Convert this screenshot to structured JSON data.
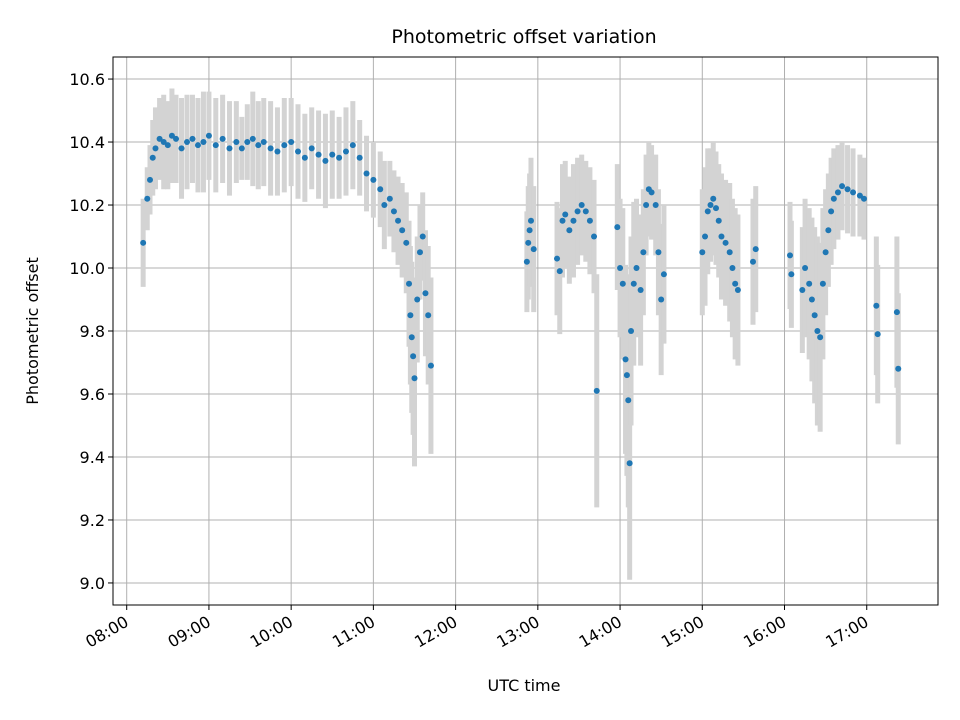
{
  "chart_data": {
    "type": "scatter",
    "title": "Photometric offset variation",
    "xlabel": "UTC time",
    "ylabel": "Photometric offset",
    "x_ticks": [
      "08:00",
      "09:00",
      "10:00",
      "11:00",
      "12:00",
      "13:00",
      "14:00",
      "15:00",
      "16:00",
      "17:00"
    ],
    "y_ticks": [
      "9.0",
      "9.2",
      "9.4",
      "9.6",
      "9.8",
      "10.0",
      "10.2",
      "10.4",
      "10.6"
    ],
    "xlim": [
      "07:50",
      "17:52"
    ],
    "ylim": [
      8.93,
      10.67
    ],
    "grid": true,
    "colors": {
      "points": "#1f77b4",
      "errorbars": "#d3d3d3",
      "grid": "#b0b0b0"
    },
    "series": [
      {
        "points": [
          [
            "08:12",
            10.08,
            0.14
          ],
          [
            "08:15",
            10.22,
            0.1
          ],
          [
            "08:17",
            10.28,
            0.11
          ],
          [
            "08:19",
            10.35,
            0.12
          ],
          [
            "08:21",
            10.38,
            0.13
          ],
          [
            "08:24",
            10.41,
            0.13
          ],
          [
            "08:27",
            10.4,
            0.15
          ],
          [
            "08:30",
            10.39,
            0.14
          ],
          [
            "08:33",
            10.42,
            0.15
          ],
          [
            "08:36",
            10.41,
            0.14
          ],
          [
            "08:40",
            10.38,
            0.16
          ],
          [
            "08:44",
            10.4,
            0.15
          ],
          [
            "08:48",
            10.41,
            0.14
          ],
          [
            "08:52",
            10.39,
            0.15
          ],
          [
            "08:56",
            10.4,
            0.16
          ],
          [
            "09:00",
            10.42,
            0.14
          ],
          [
            "09:05",
            10.39,
            0.15
          ],
          [
            "09:10",
            10.41,
            0.14
          ],
          [
            "09:15",
            10.38,
            0.15
          ],
          [
            "09:20",
            10.4,
            0.13
          ],
          [
            "09:24",
            10.38,
            0.1
          ],
          [
            "09:28",
            10.4,
            0.12
          ],
          [
            "09:32",
            10.41,
            0.15
          ],
          [
            "09:36",
            10.39,
            0.14
          ],
          [
            "09:40",
            10.4,
            0.14
          ],
          [
            "09:45",
            10.38,
            0.15
          ],
          [
            "09:50",
            10.37,
            0.14
          ],
          [
            "09:55",
            10.39,
            0.15
          ],
          [
            "10:00",
            10.4,
            0.14
          ],
          [
            "10:05",
            10.37,
            0.15
          ],
          [
            "10:10",
            10.35,
            0.14
          ],
          [
            "10:15",
            10.38,
            0.13
          ],
          [
            "10:20",
            10.36,
            0.14
          ],
          [
            "10:25",
            10.34,
            0.15
          ],
          [
            "10:30",
            10.36,
            0.14
          ],
          [
            "10:35",
            10.35,
            0.13
          ],
          [
            "10:40",
            10.37,
            0.14
          ],
          [
            "10:45",
            10.39,
            0.14
          ],
          [
            "10:50",
            10.35,
            0.12
          ],
          [
            "10:55",
            10.3,
            0.12
          ],
          [
            "11:00",
            10.28,
            0.12
          ],
          [
            "11:05",
            10.25,
            0.12
          ],
          [
            "11:08",
            10.2,
            0.14
          ],
          [
            "11:12",
            10.22,
            0.12
          ],
          [
            "11:15",
            10.18,
            0.13
          ],
          [
            "11:18",
            10.15,
            0.14
          ],
          [
            "11:21",
            10.12,
            0.15
          ],
          [
            "11:24",
            10.08,
            0.16
          ],
          [
            "11:26",
            9.95,
            0.2
          ],
          [
            "11:27",
            9.85,
            0.22
          ],
          [
            "11:28",
            9.78,
            0.24
          ],
          [
            "11:29",
            9.72,
            0.25
          ],
          [
            "11:30",
            9.65,
            0.28
          ],
          [
            "11:32",
            9.9,
            0.2
          ],
          [
            "11:34",
            10.05,
            0.15
          ],
          [
            "11:36",
            10.1,
            0.14
          ],
          [
            "11:38",
            9.92,
            0.2
          ],
          [
            "11:40",
            9.85,
            0.22
          ],
          [
            "11:42",
            9.69,
            0.28
          ],
          [
            "12:52",
            10.02,
            0.16
          ],
          [
            "12:53",
            10.08,
            0.18
          ],
          [
            "12:54",
            10.12,
            0.18
          ],
          [
            "12:55",
            10.15,
            0.2
          ],
          [
            "12:57",
            10.06,
            0.2
          ],
          [
            "13:14",
            10.03,
            0.18
          ],
          [
            "13:16",
            9.99,
            0.2
          ],
          [
            "13:18",
            10.15,
            0.18
          ],
          [
            "13:20",
            10.17,
            0.17
          ],
          [
            "13:23",
            10.12,
            0.17
          ],
          [
            "13:26",
            10.15,
            0.18
          ],
          [
            "13:29",
            10.18,
            0.17
          ],
          [
            "13:32",
            10.2,
            0.16
          ],
          [
            "13:35",
            10.18,
            0.16
          ],
          [
            "13:38",
            10.15,
            0.17
          ],
          [
            "13:41",
            10.1,
            0.18
          ],
          [
            "13:43",
            9.61,
            0.37
          ],
          [
            "13:58",
            10.13,
            0.2
          ],
          [
            "14:00",
            10.0,
            0.22
          ],
          [
            "14:02",
            9.95,
            0.24
          ],
          [
            "14:04",
            9.71,
            0.3
          ],
          [
            "14:05",
            9.66,
            0.32
          ],
          [
            "14:06",
            9.58,
            0.34
          ],
          [
            "14:07",
            9.38,
            0.37
          ],
          [
            "14:08",
            9.8,
            0.3
          ],
          [
            "14:10",
            9.95,
            0.26
          ],
          [
            "14:12",
            10.0,
            0.22
          ],
          [
            "14:15",
            9.93,
            0.24
          ],
          [
            "14:17",
            10.05,
            0.2
          ],
          [
            "14:19",
            10.2,
            0.16
          ],
          [
            "14:21",
            10.25,
            0.15
          ],
          [
            "14:23",
            10.24,
            0.15
          ],
          [
            "14:26",
            10.2,
            0.16
          ],
          [
            "14:28",
            10.05,
            0.2
          ],
          [
            "14:30",
            9.9,
            0.24
          ],
          [
            "14:32",
            9.98,
            0.22
          ],
          [
            "15:00",
            10.05,
            0.2
          ],
          [
            "15:02",
            10.1,
            0.22
          ],
          [
            "15:04",
            10.18,
            0.2
          ],
          [
            "15:06",
            10.2,
            0.18
          ],
          [
            "15:08",
            10.22,
            0.18
          ],
          [
            "15:10",
            10.19,
            0.18
          ],
          [
            "15:12",
            10.15,
            0.18
          ],
          [
            "15:14",
            10.1,
            0.2
          ],
          [
            "15:17",
            10.08,
            0.2
          ],
          [
            "15:20",
            10.05,
            0.22
          ],
          [
            "15:22",
            10.0,
            0.22
          ],
          [
            "15:24",
            9.95,
            0.24
          ],
          [
            "15:26",
            9.93,
            0.24
          ],
          [
            "15:37",
            10.02,
            0.2
          ],
          [
            "15:39",
            10.06,
            0.2
          ],
          [
            "16:04",
            10.04,
            0.17
          ],
          [
            "16:05",
            9.98,
            0.17
          ],
          [
            "16:13",
            9.93,
            0.2
          ],
          [
            "16:15",
            10.0,
            0.22
          ],
          [
            "16:18",
            9.95,
            0.24
          ],
          [
            "16:20",
            9.9,
            0.26
          ],
          [
            "16:22",
            9.85,
            0.28
          ],
          [
            "16:24",
            9.8,
            0.3
          ],
          [
            "16:26",
            9.78,
            0.3
          ],
          [
            "16:28",
            9.95,
            0.24
          ],
          [
            "16:30",
            10.05,
            0.2
          ],
          [
            "16:32",
            10.12,
            0.18
          ],
          [
            "16:34",
            10.18,
            0.17
          ],
          [
            "16:36",
            10.22,
            0.16
          ],
          [
            "16:39",
            10.24,
            0.15
          ],
          [
            "16:42",
            10.26,
            0.14
          ],
          [
            "16:46",
            10.25,
            0.14
          ],
          [
            "16:50",
            10.24,
            0.14
          ],
          [
            "16:55",
            10.23,
            0.13
          ],
          [
            "16:58",
            10.22,
            0.13
          ],
          [
            "17:07",
            9.88,
            0.22
          ],
          [
            "17:08",
            9.79,
            0.22
          ],
          [
            "17:22",
            9.86,
            0.24
          ],
          [
            "17:23",
            9.68,
            0.24
          ]
        ]
      }
    ]
  }
}
